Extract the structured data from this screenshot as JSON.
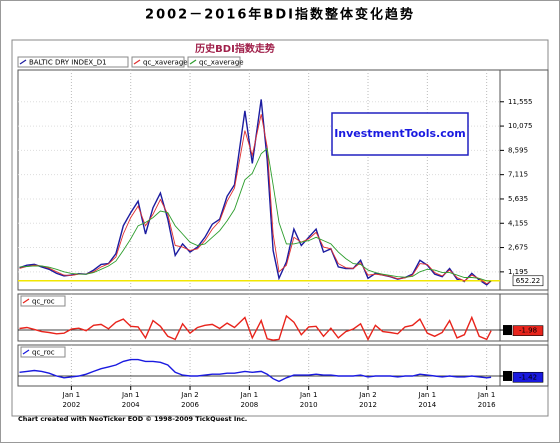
{
  "header": {
    "title": "2002－2016年BDI指数整体变化趋势"
  },
  "footer": "Chart created with NeoTicker EOD © 1998-2009 TickQuest Inc.",
  "chart_data": [
    {
      "type": "line",
      "title": "历史BDI指数走势",
      "annotation": "InvestmentTools.com",
      "x": [
        2000.25,
        2000.5,
        2000.75,
        2001,
        2001.25,
        2001.5,
        2001.75,
        2002,
        2002.25,
        2002.5,
        2002.75,
        2003,
        2003.25,
        2003.5,
        2003.75,
        2004,
        2004.25,
        2004.5,
        2004.75,
        2005,
        2005.25,
        2005.5,
        2005.75,
        2006,
        2006.25,
        2006.5,
        2006.75,
        2007,
        2007.25,
        2007.5,
        2007.85,
        2008.1,
        2008.4,
        2008.6,
        2008.8,
        2009,
        2009.25,
        2009.5,
        2009.75,
        2010,
        2010.25,
        2010.5,
        2010.75,
        2011,
        2011.25,
        2011.5,
        2011.75,
        2012,
        2012.25,
        2012.5,
        2012.75,
        2013,
        2013.25,
        2013.5,
        2013.75,
        2014,
        2014.25,
        2014.5,
        2014.75,
        2015,
        2015.25,
        2015.5,
        2015.75,
        2016,
        2016.15
      ],
      "xlim": [
        2000.2,
        2016.45
      ],
      "ylim": [
        90,
        13490
      ],
      "yticks": [
        {
          "value": 1195,
          "label": "1,195"
        },
        {
          "value": 2675,
          "label": "2,675"
        },
        {
          "value": 4155,
          "label": "4,155"
        },
        {
          "value": 5635,
          "label": "5,635"
        },
        {
          "value": 7115,
          "label": "7,115"
        },
        {
          "value": 8595,
          "label": "8,595"
        },
        {
          "value": 10075,
          "label": "10,075"
        },
        {
          "value": 11555,
          "label": "11,555"
        }
      ],
      "series": [
        {
          "name": "BALTIC DRY INDEX_D1",
          "color": "#1c1ca0",
          "last_value_label": true,
          "values": [
            1450,
            1600,
            1650,
            1500,
            1350,
            1100,
            950,
            1000,
            1080,
            1050,
            1300,
            1650,
            1700,
            2300,
            4000,
            4800,
            5500,
            3500,
            5100,
            6000,
            4400,
            2200,
            2900,
            2400,
            2700,
            3300,
            4100,
            4400,
            5800,
            6500,
            11000,
            7800,
            11700,
            8000,
            2500,
            800,
            1800,
            3800,
            2800,
            3300,
            3800,
            2400,
            2600,
            1500,
            1400,
            1400,
            1900,
            800,
            1100,
            1000,
            900,
            750,
            850,
            1050,
            1900,
            1600,
            1050,
            900,
            1400,
            750,
            600,
            1100,
            700,
            400,
            652.22
          ]
        },
        {
          "name": "qc_xaverage",
          "color": "#e03030",
          "values": [
            1400,
            1520,
            1600,
            1550,
            1420,
            1200,
            1000,
            980,
            1050,
            1060,
            1200,
            1500,
            1680,
            2100,
            3500,
            4500,
            5200,
            4000,
            4700,
            5600,
            4700,
            2800,
            2700,
            2500,
            2600,
            3100,
            3800,
            4300,
            5500,
            6300,
            9800,
            8300,
            10800,
            8800,
            3500,
            1200,
            1600,
            3300,
            3000,
            3200,
            3600,
            2700,
            2600,
            1700,
            1450,
            1400,
            1750,
            1000,
            1050,
            1000,
            920,
            780,
            830,
            1000,
            1700,
            1650,
            1150,
            950,
            1300,
            850,
            650,
            1000,
            780,
            480,
            620
          ]
        },
        {
          "name": "qc_xaverage",
          "color": "#2e9e2e",
          "values": [
            1500,
            1520,
            1560,
            1550,
            1480,
            1350,
            1200,
            1100,
            1060,
            1050,
            1150,
            1350,
            1550,
            1850,
            2500,
            3200,
            4000,
            4200,
            4500,
            4900,
            4800,
            4000,
            3500,
            3000,
            2800,
            2900,
            3300,
            3700,
            4300,
            5000,
            6800,
            7200,
            8400,
            8700,
            6500,
            4200,
            2900,
            2900,
            3000,
            3100,
            3300,
            3100,
            2900,
            2400,
            2000,
            1700,
            1650,
            1300,
            1150,
            1050,
            980,
            900,
            870,
            920,
            1200,
            1350,
            1300,
            1150,
            1150,
            1000,
            850,
            850,
            800,
            650,
            620
          ]
        }
      ]
    },
    {
      "type": "line",
      "ylim": [
        -35,
        115
      ],
      "yticks": [
        0
      ],
      "series": [
        {
          "name": "qc_roc",
          "color": "#e8241c",
          "last_value_label": true,
          "values": [
            5,
            8,
            2,
            -5,
            -8,
            -12,
            -10,
            3,
            6,
            -2,
            15,
            18,
            4,
            25,
            35,
            12,
            10,
            -25,
            30,
            12,
            -20,
            -30,
            20,
            -10,
            8,
            15,
            18,
            5,
            22,
            8,
            40,
            -25,
            30,
            -28,
            -32,
            -30,
            45,
            25,
            -15,
            10,
            12,
            -20,
            6,
            -25,
            -5,
            3,
            20,
            -30,
            15,
            -5,
            -8,
            -12,
            10,
            15,
            35,
            -10,
            -20,
            -8,
            30,
            -25,
            -15,
            40,
            -20,
            -30,
            -1.98
          ]
        }
      ]
    },
    {
      "type": "line",
      "ylim": [
        -11,
        34
      ],
      "yticks": [
        0
      ],
      "xticks": [
        2002,
        2004,
        2006,
        2008,
        2010,
        2012,
        2014,
        2016
      ],
      "xtick_dates": [
        "Jan 1",
        "Jan 1",
        "Jan 2",
        "Jan 1",
        "Jan 1",
        "Jan 2",
        "Jan 1",
        "Jan 1"
      ],
      "series": [
        {
          "name": "qc_roc",
          "color": "#1a1ae0",
          "last_value_label": true,
          "values": [
            4,
            5,
            6,
            5,
            3,
            0,
            -2,
            -1,
            0,
            2,
            5,
            8,
            10,
            12,
            16,
            18,
            18,
            16,
            16,
            15,
            12,
            4,
            1,
            0,
            0,
            1,
            2,
            2,
            3,
            3,
            5,
            4,
            5,
            2,
            -3,
            -6,
            -2,
            1,
            1,
            1,
            2,
            1,
            1,
            0,
            0,
            0,
            1,
            -1,
            0,
            0,
            0,
            -1,
            0,
            0,
            2,
            1,
            0,
            -1,
            0,
            -1,
            -1,
            0,
            -1,
            -2,
            -1.42
          ]
        }
      ]
    }
  ]
}
